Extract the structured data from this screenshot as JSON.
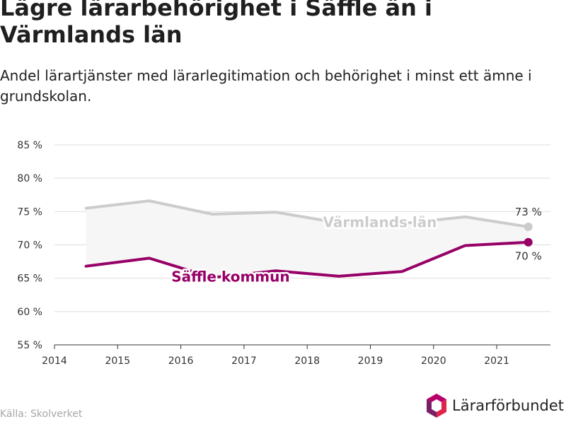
{
  "title": "Lägre lärarbehörighet i Säffle än i Värmlands län",
  "subtitle": "Andel lärartjänster med lärarlegitimation och behörighet i minst ett ämne i grundskolan.",
  "source": "Källa: Skolverket",
  "logo_text": "Lärarförbundet",
  "colors": {
    "varmland": "#cccccc",
    "saffle": "#970067",
    "band": "#f6f6f6",
    "grid": "#dddddd",
    "axis": "#333333",
    "logo_top": "#b6006b",
    "logo_right": "#e0234b",
    "logo_left": "#7a1f66"
  },
  "chart_data": {
    "type": "line",
    "xlim": [
      2014,
      2021.85
    ],
    "ylim": [
      55,
      85
    ],
    "x_ticks": [
      2014,
      2015,
      2016,
      2017,
      2018,
      2019,
      2020,
      2021
    ],
    "y_ticks": [
      {
        "value": 55,
        "label": "55 %"
      },
      {
        "value": 60,
        "label": "60 %"
      },
      {
        "value": 65,
        "label": "65 %"
      },
      {
        "value": 70,
        "label": "70 %"
      },
      {
        "value": 75,
        "label": "75 %"
      },
      {
        "value": 80,
        "label": "80 %"
      },
      {
        "value": 85,
        "label": "85 %"
      }
    ],
    "x": [
      2014.5,
      2015.5,
      2016.5,
      2017.5,
      2018.5,
      2019.5,
      2020.5,
      2021.5
    ],
    "series": [
      {
        "name": "Värmlands län",
        "values": [
          75.5,
          76.6,
          74.6,
          74.9,
          73.3,
          73.2,
          74.2,
          72.7
        ],
        "end_label": "73 %"
      },
      {
        "name": "Säffle kommun",
        "values": [
          66.8,
          68.0,
          65.1,
          66.1,
          65.3,
          66.0,
          69.9,
          70.4
        ],
        "end_label": "70 %"
      }
    ],
    "grid": true
  }
}
